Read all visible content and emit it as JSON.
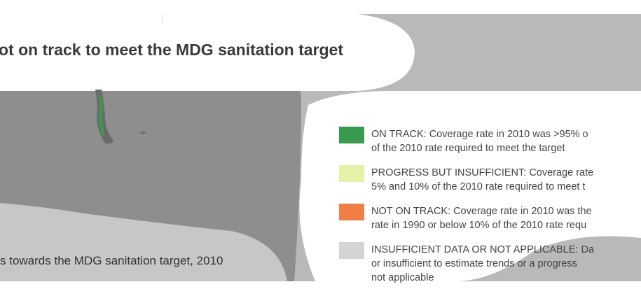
{
  "title": "ot on track to meet the MDG sanitation target",
  "caption": "s towards the MDG sanitation target, 2010",
  "legend": [
    {
      "color": "#3a9a4e",
      "lines": [
        "ON TRACK: Coverage rate in 2010 was >95% o",
        "of the 2010 rate required to meet the target"
      ]
    },
    {
      "color": "#e4f1a6",
      "lines": [
        "PROGRESS BUT INSUFFICIENT: Coverage rate",
        "5% and 10% of the 2010 rate required to meet t"
      ]
    },
    {
      "color": "#f07f45",
      "lines": [
        "NOT ON TRACK: Coverage rate in 2010 was the",
        "rate in 1990 or below 10% of the 2010 rate requ"
      ]
    },
    {
      "color": "#d4d4d4",
      "lines": [
        "INSUFFICIENT DATA OR NOT APPLICABLE: Da",
        "or insufficient to estimate trends or a progress",
        "not applicable"
      ]
    }
  ]
}
